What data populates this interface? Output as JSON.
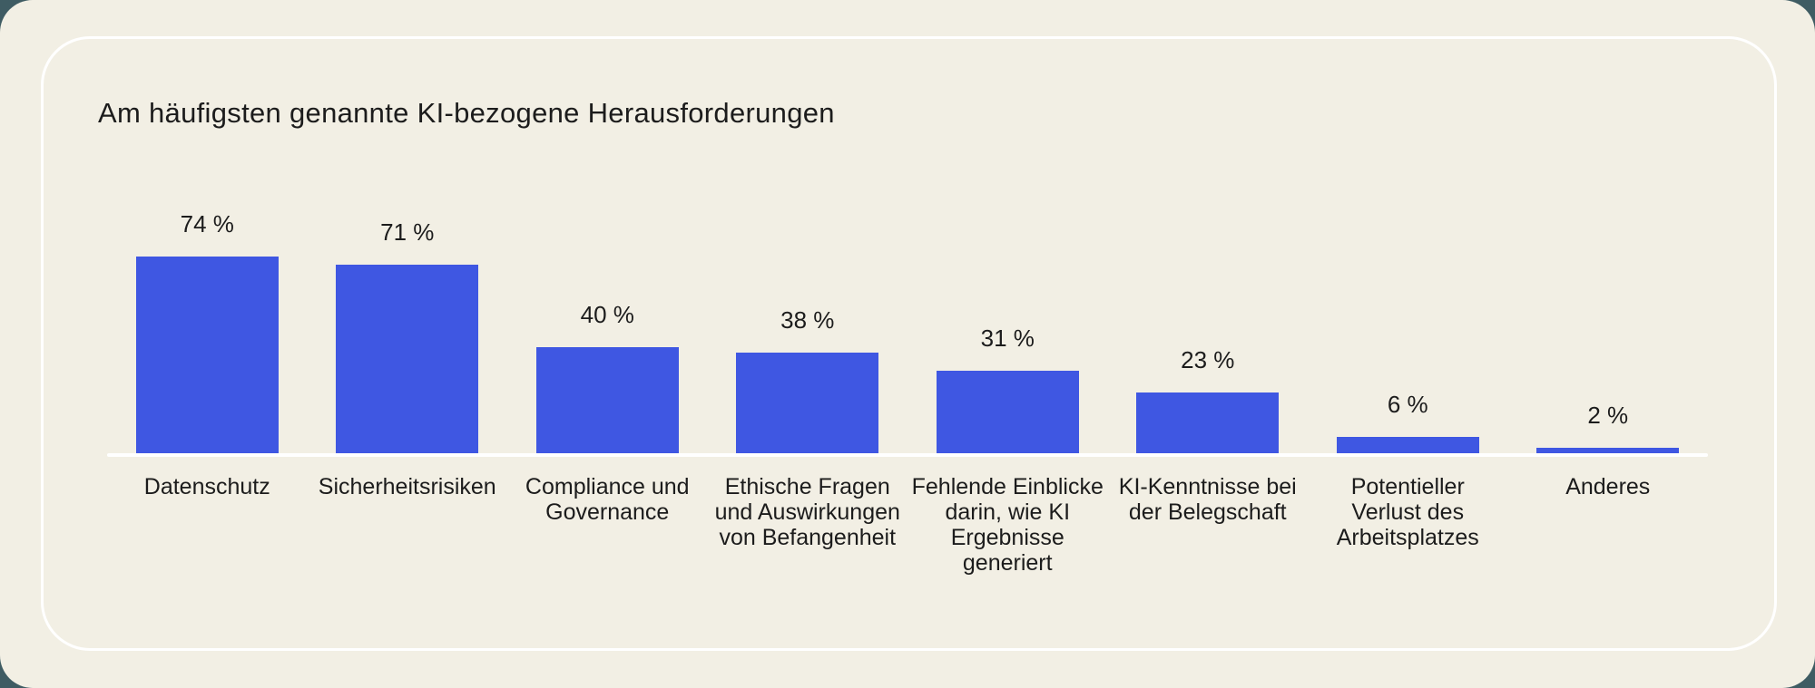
{
  "page": {
    "title": "Am häufigsten genannte KI-bezogene Herausforderungen"
  },
  "colors": {
    "outer_background": "#3F5C63",
    "page_background": "#F2EFE4",
    "card_border": "#FFFFFF",
    "bar": "#3F57E2",
    "text": "#1C1C1C",
    "baseline": "#FFFFFF"
  },
  "chart_data": {
    "type": "bar",
    "title": "Am häufigsten genannte KI-bezogene Herausforderungen",
    "unit": "%",
    "categories": [
      "Datenschutz",
      "Sicherheitsrisiken",
      "Compliance und Governance",
      "Ethische Fragen und Auswirkungen von Befangenheit",
      "Fehlende Einblicke darin, wie KI Ergebnisse generiert",
      "KI-Kenntnisse bei der Belegschaft",
      "Potentieller Verlust des Arbeitsplatzes",
      "Anderes"
    ],
    "category_label_lines": [
      "Datenschutz",
      "Sicherheitsrisiken",
      "Compliance und\nGovernance",
      "Ethische Fragen\nund Auswirkungen\nvon Befangenheit",
      "Fehlende Einblicke\ndarin, wie KI\nErgebnisse\ngeneriert",
      "KI-Kenntnisse bei\nder Belegschaft",
      "Potentieller\nVerlust des\nArbeitsplatzes",
      "Anderes"
    ],
    "values": [
      74,
      71,
      40,
      38,
      31,
      23,
      6,
      2
    ],
    "value_labels": [
      "74 %",
      "71 %",
      "40 %",
      "38 %",
      "31 %",
      "23 %",
      "6 %",
      "2 %"
    ],
    "xlabel": "",
    "ylabel": "",
    "ylim": [
      0,
      100
    ],
    "grid": false,
    "legend": false,
    "bar_color": "#3F57E2"
  }
}
